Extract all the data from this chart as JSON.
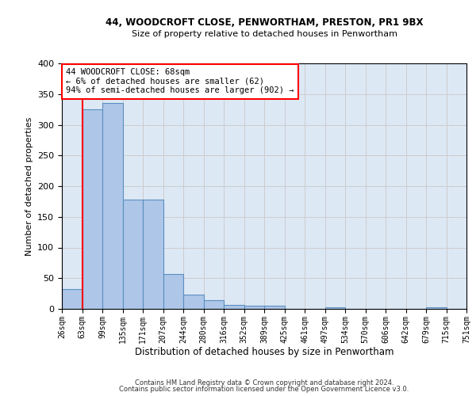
{
  "title1": "44, WOODCROFT CLOSE, PENWORTHAM, PRESTON, PR1 9BX",
  "title2": "Size of property relative to detached houses in Penwortham",
  "xlabel": "Distribution of detached houses by size in Penwortham",
  "ylabel": "Number of detached properties",
  "bar_values": [
    32,
    325,
    335,
    178,
    178,
    57,
    23,
    14,
    6,
    5,
    5,
    0,
    0,
    3,
    0,
    0,
    0,
    0,
    3,
    0
  ],
  "bin_labels": [
    "26sqm",
    "63sqm",
    "99sqm",
    "135sqm",
    "171sqm",
    "207sqm",
    "244sqm",
    "280sqm",
    "316sqm",
    "352sqm",
    "389sqm",
    "425sqm",
    "461sqm",
    "497sqm",
    "534sqm",
    "570sqm",
    "606sqm",
    "642sqm",
    "679sqm",
    "715sqm",
    "751sqm"
  ],
  "bar_color": "#aec6e8",
  "bar_edge_color": "#5a8fc0",
  "property_sqm": 68,
  "annotation_text_line1": "44 WOODCROFT CLOSE: 68sqm",
  "annotation_text_line2": "← 6% of detached houses are smaller (62)",
  "annotation_text_line3": "94% of semi-detached houses are larger (902) →",
  "annotation_box_color": "white",
  "annotation_box_edge": "red",
  "red_line_color": "red",
  "footer1": "Contains HM Land Registry data © Crown copyright and database right 2024.",
  "footer2": "Contains public sector information licensed under the Open Government Licence v3.0.",
  "ylim": [
    0,
    400
  ],
  "yticks": [
    0,
    50,
    100,
    150,
    200,
    250,
    300,
    350,
    400
  ],
  "grid_color": "#cccccc",
  "bg_color": "#dde8f5"
}
